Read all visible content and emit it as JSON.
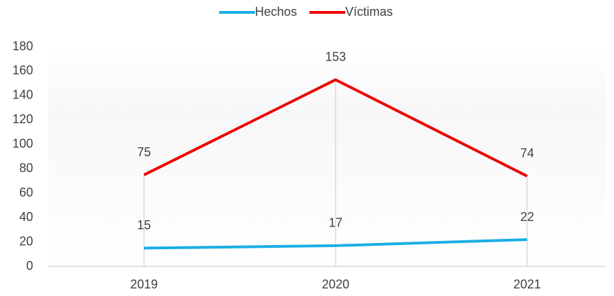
{
  "chart_data": {
    "type": "line",
    "categories": [
      "2019",
      "2020",
      "2021"
    ],
    "series": [
      {
        "name": "Hechos",
        "color": "#1aaee5",
        "values": [
          15,
          17,
          22
        ]
      },
      {
        "name": "Víctimas",
        "color": "#ee0000",
        "values": [
          75,
          153,
          74
        ]
      }
    ],
    "ylim": [
      0,
      180
    ],
    "yticks": [
      0,
      20,
      40,
      60,
      80,
      100,
      120,
      140,
      160,
      180
    ],
    "grid": false,
    "legend": "top",
    "data_labels": true,
    "drop_lines": true
  }
}
